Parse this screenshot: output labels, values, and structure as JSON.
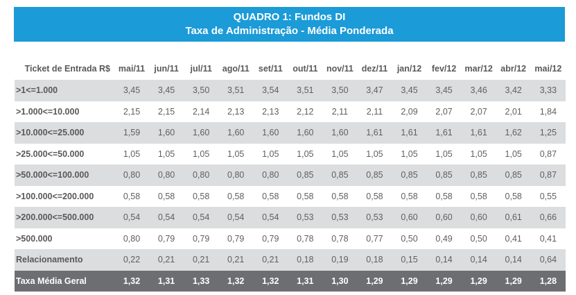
{
  "title": {
    "line1": "QUADRO 1: Fundos DI",
    "line2": "Taxa de Administração - Média Ponderada"
  },
  "header": [
    "Ticket de Entrada R$",
    "mai/11",
    "jun/11",
    "jul/11",
    "ago/11",
    "set/11",
    "out/11",
    "nov/11",
    "dez/11",
    "jan/12",
    "fev/12",
    "mar/12",
    "abr/12",
    "mai/12"
  ],
  "rows": [
    {
      "label": ">1<=1.000",
      "values": [
        "3,45",
        "3,45",
        "3,50",
        "3,51",
        "3,54",
        "3,51",
        "3,50",
        "3,47",
        "3,45",
        "3,45",
        "3,46",
        "3,42",
        "3,33"
      ]
    },
    {
      "label": ">1.000<=10.000",
      "values": [
        "2,15",
        "2,15",
        "2,14",
        "2,13",
        "2,13",
        "2,12",
        "2,11",
        "2,11",
        "2,09",
        "2,07",
        "2,07",
        "2,01",
        "1,84"
      ]
    },
    {
      "label": ">10.000<=25.000",
      "values": [
        "1,59",
        "1,60",
        "1,60",
        "1,60",
        "1,60",
        "1,60",
        "1,60",
        "1,61",
        "1,61",
        "1,61",
        "1,61",
        "1,62",
        "1,25"
      ]
    },
    {
      "label": ">25.000<=50.000",
      "values": [
        "1,05",
        "1,05",
        "1,05",
        "1,05",
        "1,05",
        "1,05",
        "1,05",
        "1,05",
        "1,05",
        "1,05",
        "1,05",
        "1,05",
        "0,87"
      ]
    },
    {
      "label": ">50.000<=100.000",
      "values": [
        "0,80",
        "0,80",
        "0,80",
        "0,80",
        "0,80",
        "0,85",
        "0,85",
        "0,85",
        "0,85",
        "0,85",
        "0,85",
        "0,85",
        "0,87"
      ]
    },
    {
      "label": " >100.000<=200.000",
      "values": [
        "0,58",
        "0,58",
        "0,58",
        "0,58",
        "0,58",
        "0,58",
        "0,58",
        "0,58",
        "0,58",
        "0,58",
        "0,58",
        "0,58",
        "0,55"
      ]
    },
    {
      "label": ">200.000<=500.000",
      "values": [
        "0,54",
        "0,54",
        "0,54",
        "0,54",
        "0,54",
        "0,53",
        "0,53",
        "0,53",
        "0,60",
        "0,60",
        "0,60",
        "0,61",
        "0,66"
      ]
    },
    {
      "label": " >500.000",
      "values": [
        "0,80",
        "0,79",
        "0,79",
        "0,79",
        "0,79",
        "0,78",
        "0,78",
        "0,77",
        "0,50",
        "0,49",
        "0,50",
        "0,41",
        "0,41"
      ]
    },
    {
      "label": "Relacionamento",
      "values": [
        "0,22",
        "0,21",
        "0,21",
        "0,21",
        "0,21",
        "0,18",
        "0,19",
        "0,18",
        "0,15",
        "0,14",
        "0,14",
        "0,14",
        "0,64"
      ]
    }
  ],
  "total": {
    "label": "Taxa Média Geral",
    "values": [
      "1,32",
      "1,31",
      "1,33",
      "1,32",
      "1,32",
      "1,31",
      "1,30",
      "1,29",
      "1,29",
      "1,29",
      "1,29",
      "1,29",
      "1,28"
    ]
  },
  "colors": {
    "title_bg": "#1b9bd7",
    "alt_row": "#dcdddf",
    "total_row": "#6d6e71"
  }
}
